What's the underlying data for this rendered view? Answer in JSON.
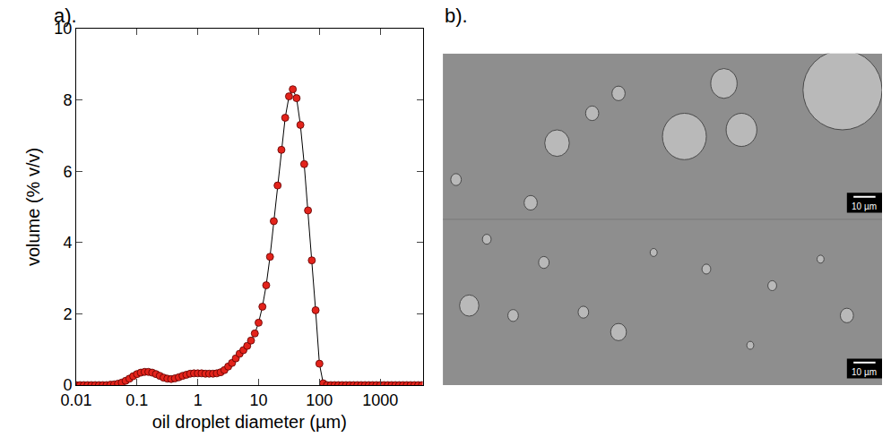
{
  "chart_data": {
    "type": "scatter",
    "annotations": [
      "a)."
    ],
    "x_label": "oil droplet diameter (µm)",
    "y_label": "volume (% v/v)",
    "log": "x",
    "grid": false,
    "marker": "circle",
    "line_style": "solid",
    "color": "#e3231b",
    "x": [
      0.01,
      0.01155,
      0.01334,
      0.0154,
      0.01778,
      0.02054,
      0.02371,
      0.02738,
      0.03162,
      0.03652,
      0.04217,
      0.0487,
      0.05623,
      0.06494,
      0.07499,
      0.0866,
      0.1,
      0.1155,
      0.1334,
      0.154,
      0.1778,
      0.2054,
      0.2371,
      0.2738,
      0.3162,
      0.3652,
      0.4217,
      0.487,
      0.5623,
      0.6494,
      0.7499,
      0.866,
      1,
      1.155,
      1.334,
      1.54,
      1.778,
      2.054,
      2.371,
      2.738,
      3.162,
      3.652,
      4.217,
      4.87,
      5.623,
      6.494,
      7.499,
      8.66,
      10,
      11.55,
      13.34,
      15.4,
      17.78,
      20.54,
      23.71,
      27.38,
      31.62,
      36.52,
      42.17,
      48.7,
      56.23,
      64.94,
      74.99,
      86.6,
      100,
      115.5,
      133.4,
      154,
      177.8,
      205.4,
      237.1,
      273.8,
      316.2,
      365.2,
      421.7,
      487,
      562.3,
      649.4,
      749.9,
      866,
      1000,
      1155,
      1334,
      1540,
      1778,
      2054,
      2371,
      2738,
      3162,
      3652,
      4217,
      4870
    ],
    "values": [
      0,
      0,
      0,
      0,
      0,
      0,
      0,
      0,
      0,
      0.01,
      0.02,
      0.04,
      0.07,
      0.12,
      0.18,
      0.25,
      0.31,
      0.35,
      0.37,
      0.37,
      0.35,
      0.31,
      0.26,
      0.21,
      0.18,
      0.17,
      0.19,
      0.22,
      0.26,
      0.29,
      0.32,
      0.33,
      0.33,
      0.33,
      0.32,
      0.32,
      0.32,
      0.33,
      0.36,
      0.42,
      0.52,
      0.62,
      0.75,
      0.88,
      0.98,
      1.1,
      1.25,
      1.45,
      1.75,
      2.2,
      2.8,
      3.6,
      4.6,
      5.6,
      6.6,
      7.5,
      8.1,
      8.3,
      8.05,
      7.3,
      6.2,
      4.9,
      3.5,
      2.1,
      0.6,
      0.05,
      0,
      0,
      0,
      0,
      0,
      0,
      0,
      0,
      0,
      0,
      0,
      0,
      0,
      0,
      0,
      0,
      0,
      0,
      0,
      0,
      0,
      0,
      0,
      0,
      0,
      0
    ],
    "xlim": [
      0.01,
      5000
    ],
    "xticks": [
      0.01,
      0.1,
      1,
      10,
      100,
      1000
    ],
    "ylim": [
      0,
      10
    ],
    "yticks": [
      0,
      2,
      4,
      6,
      8,
      10
    ]
  },
  "image_panel": {
    "label": "b).",
    "scale_bar_labels": [
      "10 µm",
      "10 µm"
    ]
  }
}
